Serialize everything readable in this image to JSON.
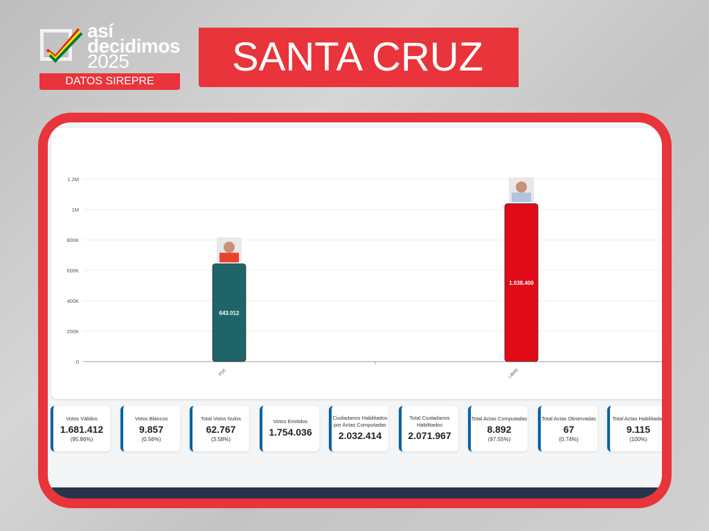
{
  "header": {
    "logo_line1": "así",
    "logo_line2": "decidimos",
    "logo_line3": "2025",
    "tag": "DATOS SIREPRE",
    "title": "SANTA CRUZ"
  },
  "chart_data": {
    "type": "bar",
    "categories": [
      "PDC",
      "LIBRE"
    ],
    "values": [
      643012,
      1038400
    ],
    "value_labels": [
      "643.012",
      "1.038.400"
    ],
    "colors": [
      "#1f6468",
      "#e00b16"
    ],
    "yticks": [
      "0",
      "200K",
      "400K",
      "600K",
      "800K",
      "1M",
      "1.2M"
    ],
    "ytick_values": [
      0,
      200000,
      400000,
      600000,
      800000,
      1000000,
      1200000
    ],
    "ylim": [
      0,
      1200000
    ],
    "title": "",
    "xlabel": "",
    "ylabel": "",
    "grid": true
  },
  "stats": [
    {
      "label": "Votos Válidos",
      "value": "1.681.412",
      "pct": "(95.86%)"
    },
    {
      "label": "Votos Blancos",
      "value": "9.857",
      "pct": "(0.56%)"
    },
    {
      "label": "Total Votos Nulos",
      "value": "62.767",
      "pct": "(3.58%)"
    },
    {
      "label": "Votos Emitidos",
      "value": "1.754.036"
    },
    {
      "label": "Ciudadanos Habilitados por Actas Computadas",
      "value": "2.032.414"
    },
    {
      "label": "Total Ciudadanos Habilitados",
      "value": "2.071.967"
    },
    {
      "label": "Total Actas Computadas",
      "value": "8.892",
      "pct": "(97.55%)"
    },
    {
      "label": "Total Actas Observadas",
      "value": "67",
      "pct": "(0.74%)"
    },
    {
      "label": "Total Actas Habilitadas",
      "value": "9.115",
      "pct": "(100%)"
    }
  ]
}
